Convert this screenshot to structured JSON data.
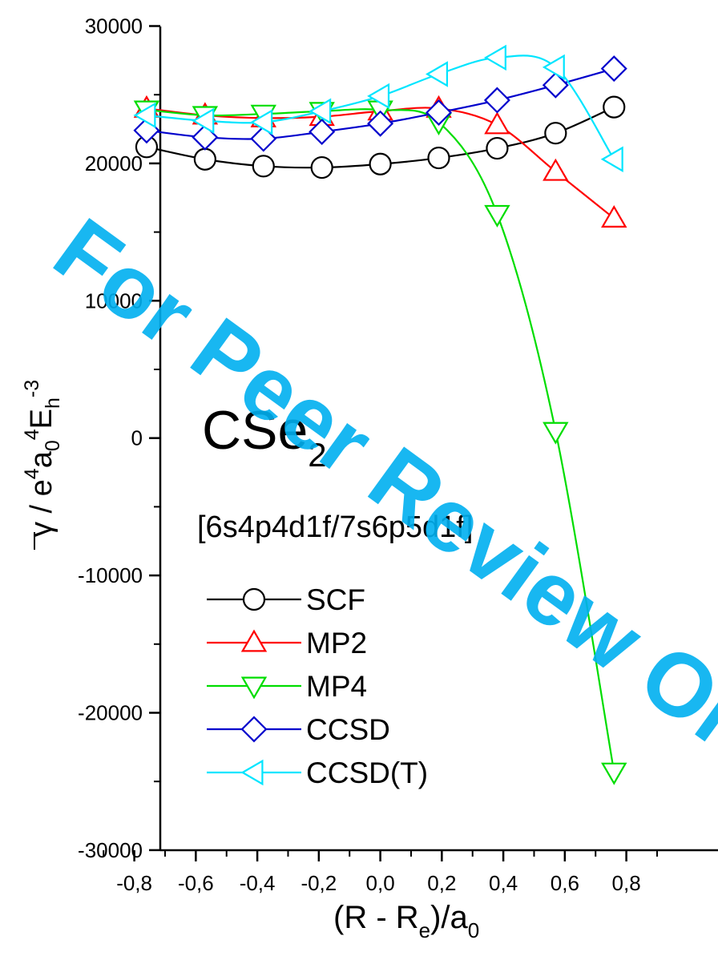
{
  "watermark": "For Peer Review Only",
  "colors": {
    "SCF": "#000000",
    "MP2": "#ff0000",
    "MP4": "#00dd00",
    "CCSD": "#0000cc",
    "CCSD(T)": "#00e5ff",
    "watermark": "#00b0f0"
  },
  "chart_data": {
    "type": "line",
    "title": "",
    "molecule": {
      "base": "CSe",
      "sub": "2"
    },
    "basis_set": "[6s4p4d1f/7s6p5d1f]",
    "xlabel": {
      "a": "(R - R",
      "b": "e",
      "c": ")/a",
      "d": "0"
    },
    "ylabel": {
      "a": "γ / e",
      "b": "4",
      "c": "a",
      "d": "0",
      "e": "4",
      "f": "E",
      "g": "h",
      "h": "-3"
    },
    "xlim": [
      -0.9,
      0.9
    ],
    "ylim": [
      -30000,
      30000
    ],
    "x_ticks": [
      -0.8,
      -0.6,
      -0.4,
      -0.2,
      0.0,
      0.2,
      0.4,
      0.6,
      0.8
    ],
    "x_tick_labels": [
      "-0,8",
      "-0,6",
      "-0,4",
      "-0,2",
      "0,0",
      "0,2",
      "0,4",
      "0,6",
      "0,8"
    ],
    "y_ticks": [
      -30000,
      -20000,
      -10000,
      0,
      10000,
      20000,
      30000
    ],
    "y_tick_labels": [
      "-30000",
      "-20000",
      "-10000",
      "0",
      "10000",
      "20000",
      "30000"
    ],
    "grid": false,
    "legend_position": "bottom-left",
    "x": [
      -0.76,
      -0.57,
      -0.38,
      -0.19,
      0.0,
      0.19,
      0.38,
      0.57,
      0.76
    ],
    "series": [
      {
        "name": "SCF",
        "marker": "circle",
        "values": [
          21200,
          20300,
          19800,
          19700,
          19950,
          20400,
          21100,
          22200,
          24100
        ]
      },
      {
        "name": "MP2",
        "marker": "triangle-up",
        "values": [
          24000,
          23500,
          23300,
          23400,
          23800,
          24000,
          22800,
          19400,
          16000
        ]
      },
      {
        "name": "MP4",
        "marker": "triangle-down",
        "values": [
          23900,
          23500,
          23600,
          23800,
          23900,
          23000,
          16300,
          500,
          -24300
        ]
      },
      {
        "name": "CCSD",
        "marker": "diamond",
        "values": [
          22400,
          21900,
          21800,
          22300,
          22900,
          23700,
          24600,
          25700,
          26900
        ]
      },
      {
        "name": "CCSD(T)",
        "marker": "triangle-left",
        "values": [
          23500,
          23100,
          23000,
          23800,
          24900,
          26500,
          27700,
          27000,
          20300
        ]
      }
    ]
  }
}
